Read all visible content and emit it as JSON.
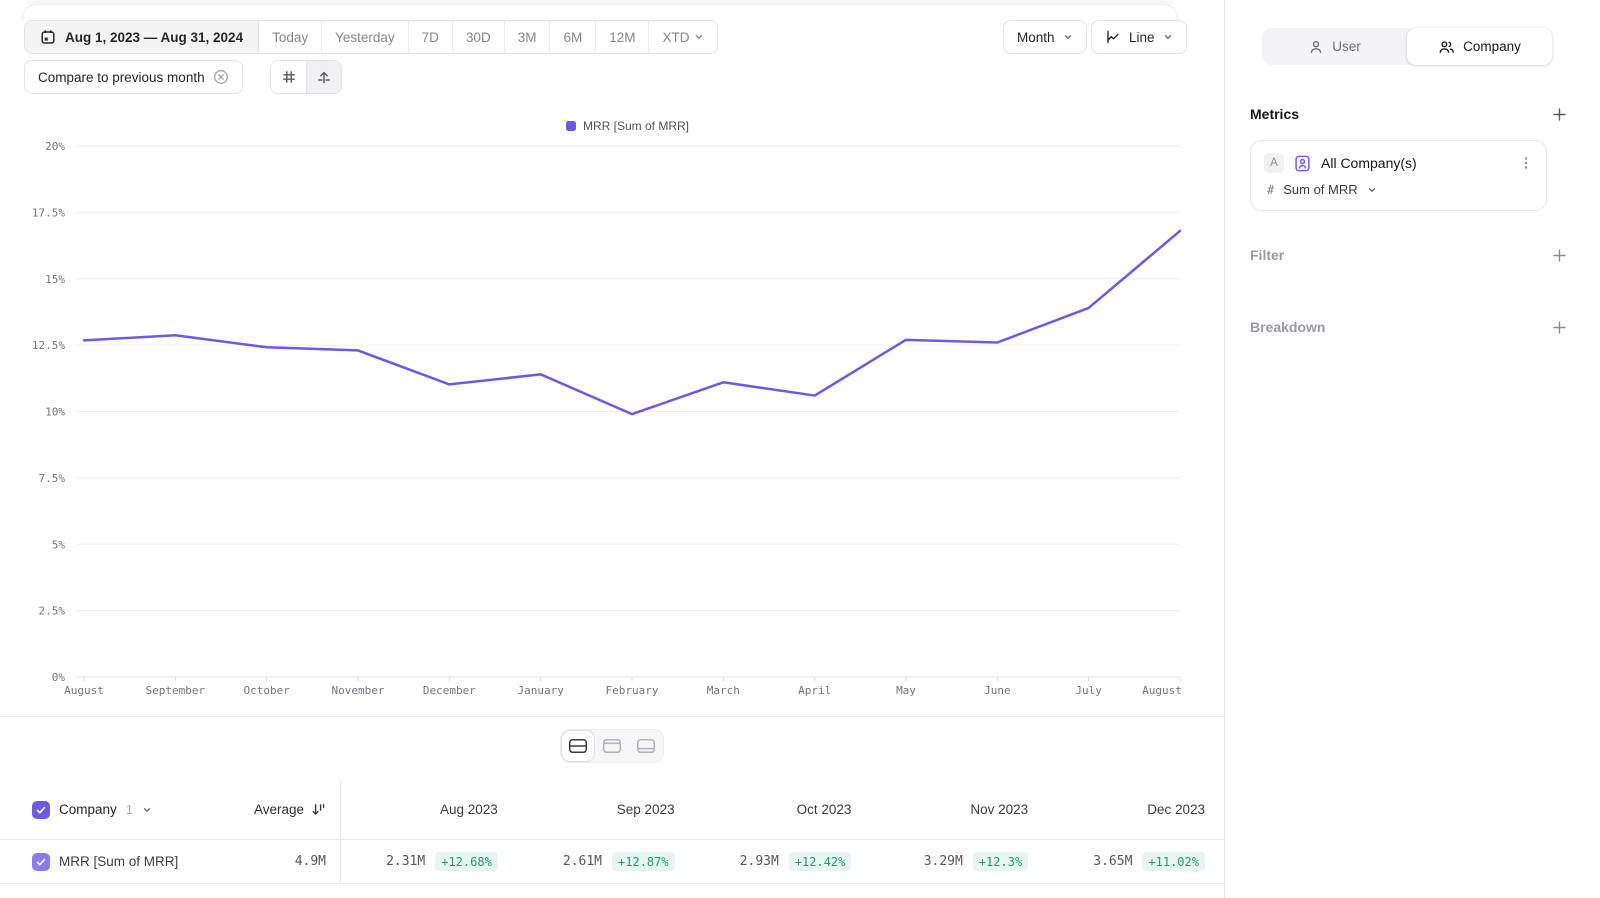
{
  "colors": {
    "accent": "#6c59e8",
    "positive_text": "#1f9d68",
    "positive_bg": "#e6f6ee"
  },
  "toolbar": {
    "date_range": "Aug 1, 2023 — Aug 31, 2024",
    "presets": [
      "Today",
      "Yesterday",
      "7D",
      "30D",
      "3M",
      "6M",
      "12M"
    ],
    "xtd": "XTD",
    "compare": "Compare to previous month",
    "granularity": "Month",
    "chart_type": "Line"
  },
  "chart_data": {
    "type": "line",
    "title": "MRR [Sum of MRR]",
    "legend": [
      "MRR [Sum of MRR]"
    ],
    "legend_position": "top-center",
    "grid": true,
    "categories": [
      "August",
      "September",
      "October",
      "November",
      "December",
      "January",
      "February",
      "March",
      "April",
      "May",
      "June",
      "July",
      "August"
    ],
    "series": [
      {
        "name": "MRR [Sum of MRR]",
        "values": [
          12.68,
          12.87,
          12.42,
          12.3,
          11.02,
          11.4,
          9.9,
          11.1,
          10.6,
          12.7,
          12.6,
          13.9,
          16.8
        ]
      }
    ],
    "ylim": [
      0,
      20
    ],
    "ylabel": "",
    "xlabel": "",
    "y_ticks": [
      {
        "value": 0,
        "label": "0%"
      },
      {
        "value": 2.5,
        "label": "2.5%"
      },
      {
        "value": 5,
        "label": "5%"
      },
      {
        "value": 7.5,
        "label": "7.5%"
      },
      {
        "value": 10,
        "label": "10%"
      },
      {
        "value": 12.5,
        "label": "12.5%"
      },
      {
        "value": 15,
        "label": "15%"
      },
      {
        "value": 17.5,
        "label": "17.5%"
      },
      {
        "value": 20,
        "label": "20%"
      }
    ],
    "line_color": "#6c59e8"
  },
  "layout_toggle": {
    "options": [
      "split-view",
      "top-panel-view",
      "bottom-panel-view"
    ],
    "active": "split-view"
  },
  "table": {
    "group": {
      "label": "Company",
      "count": "1"
    },
    "average_label": "Average",
    "row_label": "MRR [Sum of MRR]",
    "average_value": "4.9M",
    "columns": [
      {
        "label": "Aug 2023",
        "value": "2.31M",
        "change": "+12.68%"
      },
      {
        "label": "Sep 2023",
        "value": "2.61M",
        "change": "+12.87%"
      },
      {
        "label": "Oct 2023",
        "value": "2.93M",
        "change": "+12.42%"
      },
      {
        "label": "Nov 2023",
        "value": "3.29M",
        "change": "+12.3%"
      },
      {
        "label": "Dec 2023",
        "value": "3.65M",
        "change": "+11.02%"
      }
    ]
  },
  "sidebar": {
    "toggle": {
      "user": "User",
      "company": "Company",
      "active": "Company"
    },
    "metrics": {
      "title": "Metrics",
      "card": {
        "letter": "A",
        "title": "All Company(s)",
        "agg_symbol": "#",
        "aggregation": "Sum of MRR"
      }
    },
    "filter": {
      "title": "Filter"
    },
    "breakdown": {
      "title": "Breakdown"
    }
  }
}
